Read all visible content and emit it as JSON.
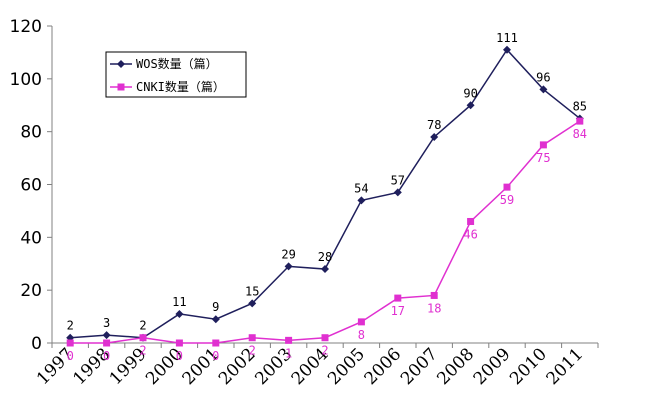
{
  "chart_data": {
    "type": "line",
    "title": "",
    "xlabel": "",
    "ylabel": "",
    "categories": [
      "1997",
      "1998",
      "1999",
      "2000",
      "2001",
      "2002",
      "2003",
      "2004",
      "2005",
      "2006",
      "2007",
      "2008",
      "2009",
      "2010",
      "2011"
    ],
    "ylim": [
      0,
      120
    ],
    "yticks": [
      0,
      20,
      40,
      60,
      80,
      100,
      120
    ],
    "grid": false,
    "legend_position": "top-left",
    "series": [
      {
        "name": "WOS数量（篇）",
        "color": "#1f1f5c",
        "marker": "diamond",
        "values": [
          2,
          3,
          2,
          11,
          9,
          15,
          29,
          28,
          54,
          57,
          78,
          90,
          111,
          96,
          85
        ]
      },
      {
        "name": "CNKI数量（篇）",
        "color": "#e030d0",
        "marker": "square",
        "values": [
          0,
          0,
          2,
          0,
          0,
          2,
          1,
          2,
          8,
          17,
          18,
          46,
          59,
          75,
          84
        ]
      }
    ]
  }
}
